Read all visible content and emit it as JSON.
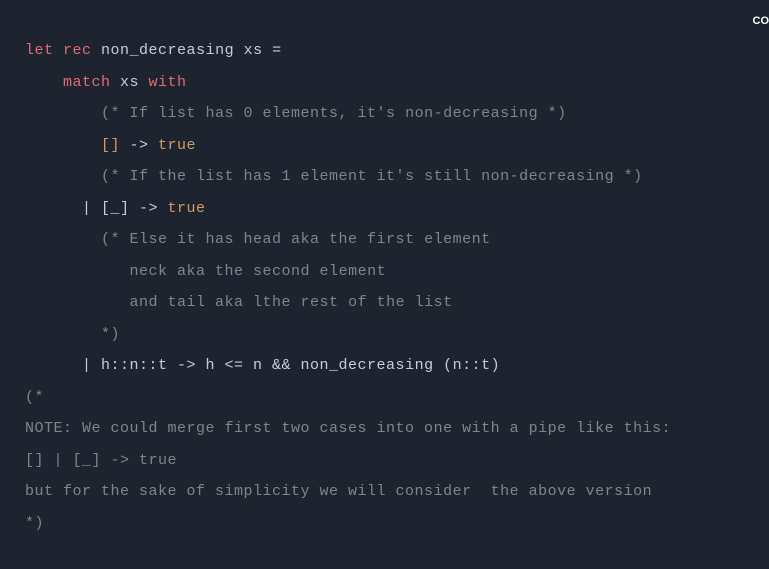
{
  "corner": "CO",
  "colors": {
    "background": "#1e2330",
    "keyword_red": "#e06c75",
    "keyword_orange": "#d19a66",
    "keyword_blue": "#61afef",
    "comment": "#7f848e",
    "text": "#c5cddb",
    "bool": "#d19a66"
  },
  "fontsize": 15,
  "line1": {
    "let": "let",
    "rec": "rec",
    "rest": " non_decreasing xs ="
  },
  "line2": {
    "indent": "    ",
    "match": "match",
    "xs": " xs ",
    "with": "with"
  },
  "line3": {
    "indent": "        ",
    "comment": "(* If list has 0 elements, it's non-decreasing *)"
  },
  "line4": {
    "indent": "        ",
    "bracket": "[]",
    "arrow": " -> ",
    "true": "true"
  },
  "line5": {
    "indent": "        ",
    "comment": "(* If the list has 1 element it's still non-decreasing *)"
  },
  "line6": {
    "indent": "      | ",
    "bracket": "[_]",
    "arrow": " -> ",
    "true": "true"
  },
  "line7": {
    "indent": "        ",
    "comment": "(* Else it has head aka the first element"
  },
  "line8": {
    "indent": "           ",
    "comment": "neck aka the second element"
  },
  "line9": {
    "indent": "           ",
    "comment": "and tail aka lthe rest of the list"
  },
  "line10": {
    "indent": "        ",
    "comment": "*)"
  },
  "line11": {
    "indent": "      | ",
    "rest": "h::n::t -> h <= n && non_decreasing (n::t)"
  },
  "line12": "(*",
  "line13": "NOTE: We could merge first two cases into one with a pipe like this:",
  "line14": "[] | [_] -> true",
  "line15": "but for the sake of simplicity we will consider  the above version",
  "line16": "*)"
}
